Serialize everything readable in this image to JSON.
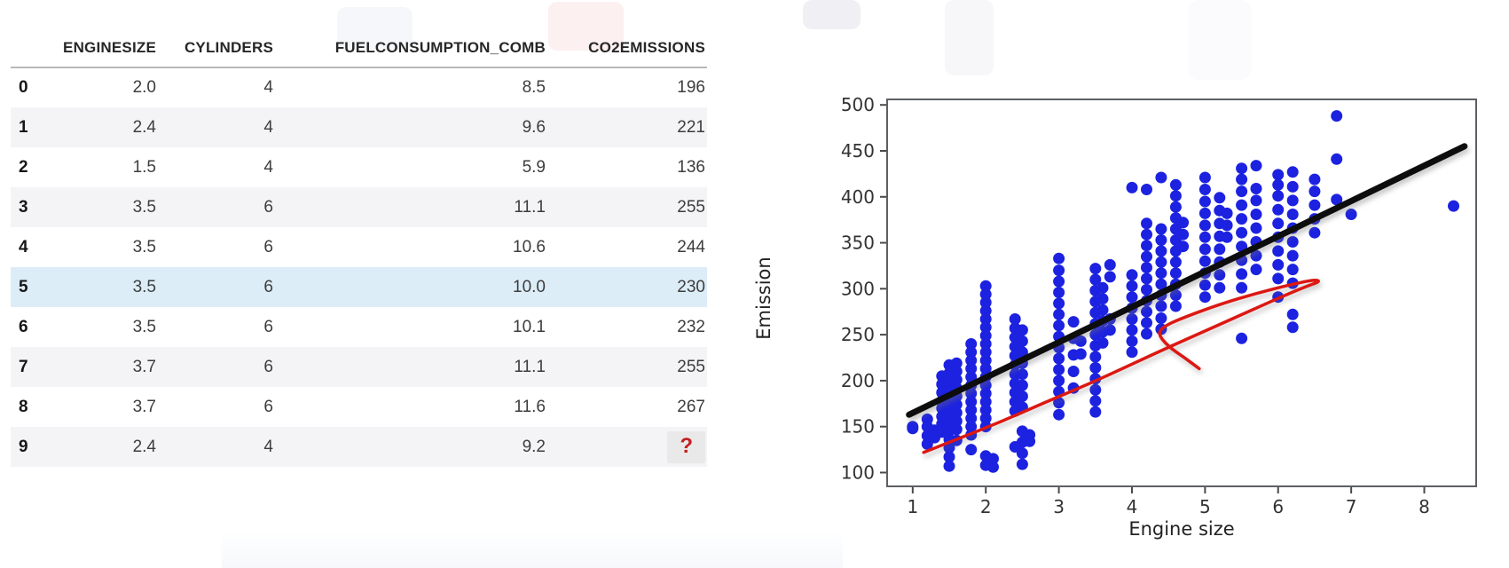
{
  "canvas": {
    "bg": "#ffffff"
  },
  "table": {
    "columns": [
      "ENGINESIZE",
      "CYLINDERS",
      "FUELCONSUMPTION_COMB",
      "CO2EMISSIONS"
    ],
    "rows": [
      {
        "index": "0",
        "cells": [
          "2.0",
          "4",
          "8.5",
          "196"
        ]
      },
      {
        "index": "1",
        "cells": [
          "2.4",
          "4",
          "9.6",
          "221"
        ]
      },
      {
        "index": "2",
        "cells": [
          "1.5",
          "4",
          "5.9",
          "136"
        ]
      },
      {
        "index": "3",
        "cells": [
          "3.5",
          "6",
          "11.1",
          "255"
        ]
      },
      {
        "index": "4",
        "cells": [
          "3.5",
          "6",
          "10.6",
          "244"
        ]
      },
      {
        "index": "5",
        "cells": [
          "3.5",
          "6",
          "10.0",
          "230"
        ],
        "highlight": true
      },
      {
        "index": "6",
        "cells": [
          "3.5",
          "6",
          "10.1",
          "232"
        ]
      },
      {
        "index": "7",
        "cells": [
          "3.7",
          "6",
          "11.1",
          "255"
        ]
      },
      {
        "index": "8",
        "cells": [
          "3.7",
          "6",
          "11.6",
          "267"
        ]
      },
      {
        "index": "9",
        "cells": [
          "2.4",
          "4",
          "9.2",
          "?"
        ],
        "missing_cell": 3
      }
    ],
    "stripe_color": "#f4f4f6",
    "highlight_color": "#dcedf7",
    "missing_value": "?",
    "missing_color": "#c41f1f",
    "missing_bg": "#e9e9e9"
  },
  "chart_data": {
    "type": "scatter",
    "title": "",
    "xlabel": "Engine size",
    "ylabel": "Emission",
    "xlim": [
      0.65,
      8.71
    ],
    "ylim": [
      85,
      506
    ],
    "xticks": [
      1,
      2,
      3,
      4,
      5,
      6,
      7,
      8
    ],
    "yticks": [
      100,
      150,
      200,
      250,
      300,
      350,
      400,
      450,
      500
    ],
    "grid": false,
    "legend": "none",
    "point_color": "#1c22e0",
    "point_radius": 6.5,
    "clusters": [
      [
        1.0,
        [
          148,
          150
        ]
      ],
      [
        1.2,
        [
          131,
          140,
          150,
          158
        ]
      ],
      [
        1.3,
        [
          138,
          146
        ]
      ],
      [
        1.4,
        [
          144,
          153,
          161,
          170,
          178,
          187,
          196,
          205
        ]
      ],
      [
        1.5,
        [
          107,
          117,
          127,
          136,
          145,
          154,
          163,
          172,
          181,
          190,
          199,
          208,
          217
        ]
      ],
      [
        1.6,
        [
          135,
          147,
          156,
          165,
          174,
          183,
          192,
          201,
          210,
          219
        ]
      ],
      [
        1.8,
        [
          125,
          141,
          150,
          159,
          168,
          177,
          186,
          195,
          204,
          213,
          222,
          231,
          240
        ]
      ],
      [
        2.0,
        [
          108,
          118,
          150,
          159,
          168,
          177,
          186,
          195,
          204,
          213,
          222,
          231,
          240,
          249,
          258,
          267,
          276,
          285,
          294,
          303
        ]
      ],
      [
        2.1,
        [
          106,
          115
        ]
      ],
      [
        2.4,
        [
          128,
          167,
          177,
          187,
          197,
          207,
          217,
          227,
          237,
          247,
          257,
          267
        ]
      ],
      [
        2.5,
        [
          109,
          121,
          133,
          145,
          171,
          183,
          195,
          207,
          219,
          231,
          243,
          255
        ]
      ],
      [
        2.6,
        [
          134,
          141
        ]
      ],
      [
        3.0,
        [
          163,
          176,
          188,
          200,
          212,
          224,
          236,
          248,
          260,
          272,
          284,
          296,
          308,
          320,
          333
        ]
      ],
      [
        3.2,
        [
          192,
          210,
          228,
          246,
          264
        ]
      ],
      [
        3.3,
        [
          229,
          243
        ]
      ],
      [
        3.5,
        [
          166,
          178,
          190,
          202,
          214,
          226,
          238,
          250,
          262,
          274,
          286,
          298,
          310,
          322
        ]
      ],
      [
        3.6,
        [
          241,
          253,
          265,
          277,
          289,
          301
        ]
      ],
      [
        3.7,
        [
          255,
          267,
          313,
          326
        ]
      ],
      [
        4.0,
        [
          231,
          243,
          255,
          267,
          279,
          291,
          303,
          315,
          410
        ]
      ],
      [
        4.2,
        [
          251,
          263,
          275,
          287,
          299,
          311,
          323,
          335,
          347,
          359,
          371,
          408
        ]
      ],
      [
        4.4,
        [
          256,
          268,
          281,
          293,
          305,
          317,
          329,
          341,
          353,
          365,
          421
        ]
      ],
      [
        4.6,
        [
          281,
          293,
          305,
          317,
          329,
          341,
          353,
          365,
          377,
          389,
          401,
          413
        ]
      ],
      [
        4.7,
        [
          346,
          359,
          372
        ]
      ],
      [
        5.0,
        [
          291,
          304,
          317,
          330,
          343,
          356,
          369,
          382,
          395,
          408,
          421
        ]
      ],
      [
        5.2,
        [
          301,
          315,
          329,
          343,
          357,
          371,
          385,
          399
        ]
      ],
      [
        5.3,
        [
          356,
          369,
          382
        ]
      ],
      [
        5.5,
        [
          246,
          301,
          316,
          331,
          346,
          361,
          376,
          391,
          406,
          419,
          431
        ]
      ],
      [
        5.7,
        [
          321,
          336,
          351,
          366,
          381,
          396,
          409,
          434
        ]
      ],
      [
        6.0,
        [
          291,
          311,
          326,
          341,
          356,
          371,
          386,
          401,
          413,
          424
        ]
      ],
      [
        6.2,
        [
          258,
          272,
          306,
          321,
          336,
          351,
          366,
          381,
          396,
          411,
          427
        ]
      ],
      [
        6.5,
        [
          361,
          376,
          391,
          406,
          419
        ]
      ],
      [
        6.8,
        [
          397,
          441,
          488
        ]
      ],
      [
        7.0,
        [
          381
        ]
      ],
      [
        8.4,
        [
          390
        ]
      ]
    ],
    "fit_line": {
      "x1": 0.95,
      "y1": 163,
      "x2": 8.55,
      "y2": 455,
      "color": "#0d0d0d",
      "width": 7
    },
    "annotation": {
      "shape": "freehand-arrow-loop",
      "color": "#dc1812",
      "width": 3.5,
      "points": [
        [
          1.15,
          122
        ],
        [
          1.6,
          136
        ],
        [
          2.2,
          155
        ],
        [
          2.8,
          176
        ],
        [
          3.4,
          196
        ],
        [
          4.0,
          218
        ],
        [
          4.6,
          240
        ],
        [
          5.2,
          261
        ],
        [
          5.7,
          279
        ],
        [
          6.1,
          293
        ],
        [
          6.4,
          303
        ],
        [
          6.58,
          308
        ],
        [
          6.5,
          310
        ],
        [
          6.2,
          305
        ],
        [
          5.7,
          295
        ],
        [
          5.2,
          283
        ],
        [
          4.75,
          270
        ],
        [
          4.45,
          260
        ],
        [
          4.35,
          251
        ],
        [
          4.5,
          237
        ],
        [
          4.72,
          225
        ],
        [
          4.92,
          213
        ]
      ]
    }
  }
}
